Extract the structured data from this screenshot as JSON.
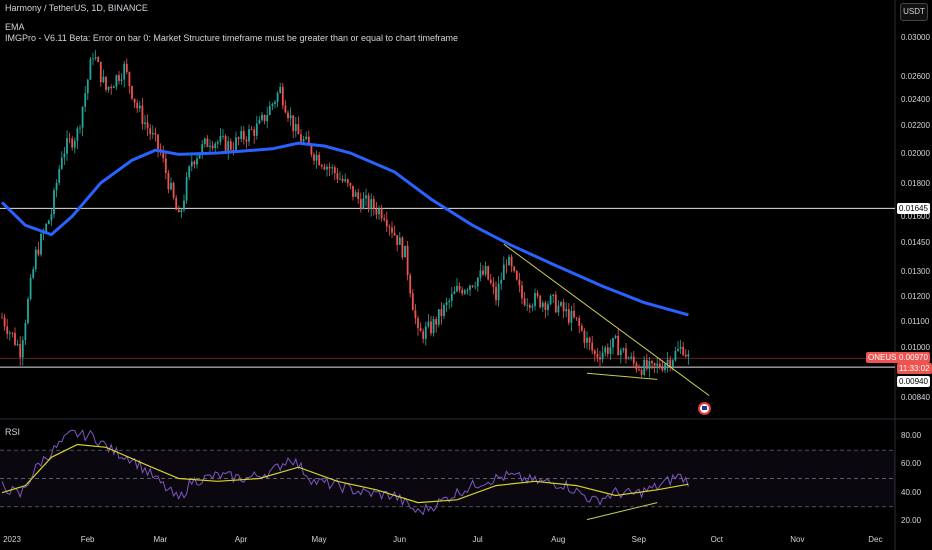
{
  "header": {
    "title": "Harmony / TetherUS, 1D, BINANCE",
    "ema_label": "EMA",
    "error_text": "IMGPro - V6.11 Beta: Error on bar 0: Market Structure timeframe must be greater than or equal to chart timeframe",
    "currency": "USDT"
  },
  "rsi_label": "RSI",
  "colors": {
    "up": "#26a69a",
    "down": "#ef5350",
    "ema": "#2962ff",
    "rsi": "#7e57c2",
    "rsi_ma": "#d4d42a",
    "trend": "#cccc55",
    "price_line": "#ef5350",
    "background": "#000000"
  },
  "axis": {
    "price_ticks": [
      "0.03000",
      "0.02600",
      "0.02400",
      "0.02200",
      "0.02000",
      "0.01800",
      "0.01600",
      "0.01450",
      "0.01300",
      "0.01200",
      "0.01100",
      "0.01000",
      "0.00840"
    ],
    "rsi_ticks": [
      "80.00",
      "60.00",
      "40.00",
      "20.00"
    ],
    "months": [
      "2023",
      "Feb",
      "Mar",
      "Apr",
      "May",
      "Jun",
      "Jul",
      "Aug",
      "Sep",
      "Oct",
      "Nov",
      "Dec"
    ]
  },
  "price_labels": {
    "horizontal_level": "0.01645",
    "symbol": "ONEUSDT",
    "last_price": "0.00970",
    "countdown": "11:33:02",
    "support_level": "0.00940"
  },
  "chart_data": [
    {
      "type": "candlestick",
      "title": "Harmony / TetherUS, 1D, BINANCE",
      "x_start": "2023-01-01",
      "x_end": "2023-09-22",
      "y_scale": "log",
      "ylim": [
        0.008,
        0.0315
      ],
      "ohlc_keyframes": [
        [
          "2023-01-01",
          0.0112
        ],
        [
          "2023-01-08",
          0.01
        ],
        [
          "2023-01-14",
          0.014
        ],
        [
          "2023-01-20",
          0.0162
        ],
        [
          "2023-01-24",
          0.02
        ],
        [
          "2023-01-30",
          0.0215
        ],
        [
          "2023-02-05",
          0.0285
        ],
        [
          "2023-02-10",
          0.025
        ],
        [
          "2023-02-17",
          0.027
        ],
        [
          "2023-02-22",
          0.0235
        ],
        [
          "2023-03-03",
          0.02
        ],
        [
          "2023-03-10",
          0.0158
        ],
        [
          "2023-03-15",
          0.0195
        ],
        [
          "2023-03-22",
          0.021
        ],
        [
          "2023-03-30",
          0.0205
        ],
        [
          "2023-04-10",
          0.022
        ],
        [
          "2023-04-18",
          0.025
        ],
        [
          "2023-04-24",
          0.0215
        ],
        [
          "2023-05-01",
          0.02
        ],
        [
          "2023-05-10",
          0.0185
        ],
        [
          "2023-05-18",
          0.017
        ],
        [
          "2023-05-28",
          0.0162
        ],
        [
          "2023-06-05",
          0.014
        ],
        [
          "2023-06-10",
          0.0105
        ],
        [
          "2023-06-15",
          0.0108
        ],
        [
          "2023-06-25",
          0.0123
        ],
        [
          "2023-07-06",
          0.0131
        ],
        [
          "2023-07-10",
          0.012
        ],
        [
          "2023-07-14",
          0.0138
        ],
        [
          "2023-07-20",
          0.012
        ],
        [
          "2023-08-01",
          0.0118
        ],
        [
          "2023-08-10",
          0.011
        ],
        [
          "2023-08-17",
          0.0098
        ],
        [
          "2023-08-25",
          0.0102
        ],
        [
          "2023-09-01",
          0.0095
        ],
        [
          "2023-09-08",
          0.0093
        ],
        [
          "2023-09-15",
          0.0097
        ],
        [
          "2023-09-20",
          0.0101
        ],
        [
          "2023-09-22",
          0.0097
        ]
      ],
      "ema": [
        [
          "2023-01-01",
          0.0168
        ],
        [
          "2023-01-10",
          0.0155
        ],
        [
          "2023-01-20",
          0.015
        ],
        [
          "2023-01-28",
          0.016
        ],
        [
          "2023-02-08",
          0.018
        ],
        [
          "2023-02-20",
          0.0195
        ],
        [
          "2023-03-01",
          0.0202
        ],
        [
          "2023-03-10",
          0.0199
        ],
        [
          "2023-03-25",
          0.02
        ],
        [
          "2023-04-15",
          0.0203
        ],
        [
          "2023-04-25",
          0.0207
        ],
        [
          "2023-05-05",
          0.0205
        ],
        [
          "2023-05-15",
          0.02
        ],
        [
          "2023-06-01",
          0.0187
        ],
        [
          "2023-06-15",
          0.017
        ],
        [
          "2023-07-01",
          0.0155
        ],
        [
          "2023-07-15",
          0.0145
        ],
        [
          "2023-08-01",
          0.0135
        ],
        [
          "2023-08-20",
          0.0125
        ],
        [
          "2023-09-05",
          0.0118
        ],
        [
          "2023-09-22",
          0.0113
        ]
      ],
      "horizontal_levels": [
        0.01645,
        0.0094
      ],
      "trendlines": [
        [
          [
            "2023-07-13",
            0.0145
          ],
          [
            "2023-09-30",
            0.0085
          ]
        ],
        [
          [
            "2023-08-14",
            0.0092
          ],
          [
            "2023-09-10",
            0.009
          ]
        ]
      ],
      "grid": false
    },
    {
      "type": "line",
      "title": "RSI",
      "ylim": [
        15,
        85
      ],
      "reference_lines": [
        70,
        50,
        30
      ],
      "series": [
        {
          "values": [
            [
              "2023-01-01",
              45
            ],
            [
              "2023-01-08",
              38
            ],
            [
              "2023-01-15",
              60
            ],
            [
              "2023-01-22",
              72
            ],
            [
              "2023-01-28",
              82
            ],
            [
              "2023-02-05",
              80
            ],
            [
              "2023-02-12",
              70
            ],
            [
              "2023-02-20",
              64
            ],
            [
              "2023-03-01",
              50
            ],
            [
              "2023-03-10",
              35
            ],
            [
              "2023-03-15",
              48
            ],
            [
              "2023-03-25",
              52
            ],
            [
              "2023-04-05",
              50
            ],
            [
              "2023-04-15",
              55
            ],
            [
              "2023-04-22",
              65
            ],
            [
              "2023-05-01",
              48
            ],
            [
              "2023-05-10",
              45
            ],
            [
              "2023-05-20",
              40
            ],
            [
              "2023-06-01",
              38
            ],
            [
              "2023-06-10",
              26
            ],
            [
              "2023-06-15",
              30
            ],
            [
              "2023-06-25",
              40
            ],
            [
              "2023-07-05",
              48
            ],
            [
              "2023-07-15",
              52
            ],
            [
              "2023-07-25",
              48
            ],
            [
              "2023-08-05",
              46
            ],
            [
              "2023-08-17",
              34
            ],
            [
              "2023-08-25",
              40
            ],
            [
              "2023-09-01",
              39
            ],
            [
              "2023-09-10",
              44
            ],
            [
              "2023-09-18",
              52
            ],
            [
              "2023-09-22",
              48
            ]
          ]
        },
        {
          "values": [
            [
              "2023-01-01",
              40
            ],
            [
              "2023-01-10",
              45
            ],
            [
              "2023-01-20",
              65
            ],
            [
              "2023-01-30",
              74
            ],
            [
              "2023-02-10",
              72
            ],
            [
              "2023-02-25",
              60
            ],
            [
              "2023-03-10",
              50
            ],
            [
              "2023-03-25",
              48
            ],
            [
              "2023-04-10",
              50
            ],
            [
              "2023-04-25",
              58
            ],
            [
              "2023-05-10",
              48
            ],
            [
              "2023-05-25",
              42
            ],
            [
              "2023-06-10",
              33
            ],
            [
              "2023-06-25",
              35
            ],
            [
              "2023-07-10",
              45
            ],
            [
              "2023-07-25",
              48
            ],
            [
              "2023-08-10",
              45
            ],
            [
              "2023-08-25",
              38
            ],
            [
              "2023-09-10",
              42
            ],
            [
              "2023-09-22",
              46
            ]
          ]
        }
      ],
      "trendlines": [
        [
          [
            "2023-08-14",
            21
          ],
          [
            "2023-09-10",
            33
          ]
        ]
      ]
    }
  ]
}
